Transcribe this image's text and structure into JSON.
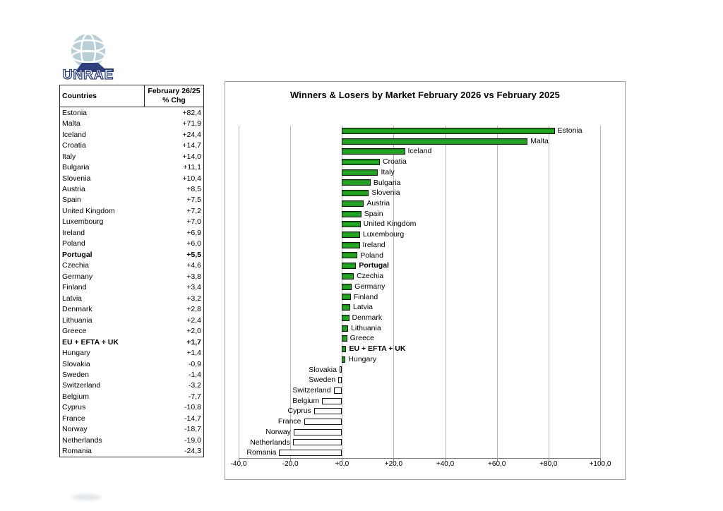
{
  "logo": {
    "brand": "UNRAE"
  },
  "table": {
    "header": {
      "countries": "Countries",
      "period": "February 26/25",
      "metric": "% Chg"
    },
    "rows": [
      {
        "country": "Estonia",
        "chg": "+82,4",
        "bold": false
      },
      {
        "country": "Malta",
        "chg": "+71,9",
        "bold": false
      },
      {
        "country": "Iceland",
        "chg": "+24,4",
        "bold": false
      },
      {
        "country": "Croatia",
        "chg": "+14,7",
        "bold": false
      },
      {
        "country": "Italy",
        "chg": "+14,0",
        "bold": false
      },
      {
        "country": "Bulgaria",
        "chg": "+11,1",
        "bold": false
      },
      {
        "country": "Slovenia",
        "chg": "+10,4",
        "bold": false
      },
      {
        "country": "Austria",
        "chg": "+8,5",
        "bold": false
      },
      {
        "country": "Spain",
        "chg": "+7,5",
        "bold": false
      },
      {
        "country": "United Kingdom",
        "chg": "+7,2",
        "bold": false
      },
      {
        "country": "Luxembourg",
        "chg": "+7,0",
        "bold": false
      },
      {
        "country": "Ireland",
        "chg": "+6,9",
        "bold": false
      },
      {
        "country": "Poland",
        "chg": "+6,0",
        "bold": false
      },
      {
        "country": "Portugal",
        "chg": "+5,5",
        "bold": true
      },
      {
        "country": "Czechia",
        "chg": "+4,6",
        "bold": false
      },
      {
        "country": "Germany",
        "chg": "+3,8",
        "bold": false
      },
      {
        "country": "Finland",
        "chg": "+3,4",
        "bold": false
      },
      {
        "country": "Latvia",
        "chg": "+3,2",
        "bold": false
      },
      {
        "country": "Denmark",
        "chg": "+2,8",
        "bold": false
      },
      {
        "country": "Lithuania",
        "chg": "+2,4",
        "bold": false
      },
      {
        "country": "Greece",
        "chg": "+2,0",
        "bold": false
      },
      {
        "country": "EU + EFTA + UK",
        "chg": "+1,7",
        "bold": true
      },
      {
        "country": "Hungary",
        "chg": "+1,4",
        "bold": false
      },
      {
        "country": "Slovakia",
        "chg": "-0,9",
        "bold": false
      },
      {
        "country": "Sweden",
        "chg": "-1,4",
        "bold": false
      },
      {
        "country": "Switzerland",
        "chg": "-3,2",
        "bold": false
      },
      {
        "country": "Belgium",
        "chg": "-7,7",
        "bold": false
      },
      {
        "country": "Cyprus",
        "chg": "-10,8",
        "bold": false
      },
      {
        "country": "France",
        "chg": "-14,7",
        "bold": false
      },
      {
        "country": "Norway",
        "chg": "-18,7",
        "bold": false
      },
      {
        "country": "Netherlands",
        "chg": "-19,0",
        "bold": false
      },
      {
        "country": "Romania",
        "chg": "-24,3",
        "bold": false
      }
    ]
  },
  "chart_data": {
    "type": "bar",
    "orientation": "horizontal",
    "title": "Winners & Losers by Market February 2026 vs February 2025",
    "categories": [
      "Estonia",
      "Malta",
      "Iceland",
      "Croatia",
      "Italy",
      "Bulgaria",
      "Slovenia",
      "Austria",
      "Spain",
      "United Kingdom",
      "Luxembourg",
      "Ireland",
      "Poland",
      "Portugal",
      "Czechia",
      "Germany",
      "Finland",
      "Latvia",
      "Denmark",
      "Lithuania",
      "Greece",
      "EU + EFTA + UK",
      "Hungary",
      "Slovakia",
      "Sweden",
      "Switzerland",
      "Belgium",
      "Cyprus",
      "France",
      "Norway",
      "Netherlands",
      "Romania"
    ],
    "values": [
      82.4,
      71.9,
      24.4,
      14.7,
      14.0,
      11.1,
      10.4,
      8.5,
      7.5,
      7.2,
      7.0,
      6.9,
      6.0,
      5.5,
      4.6,
      3.8,
      3.4,
      3.2,
      2.8,
      2.4,
      2.0,
      1.7,
      1.4,
      -0.9,
      -1.4,
      -3.2,
      -7.7,
      -10.8,
      -14.7,
      -18.7,
      -19.0,
      -24.3
    ],
    "bold_categories": [
      "Portugal",
      "EU + EFTA + UK"
    ],
    "xlim": [
      -40,
      100
    ],
    "xtick_values": [
      -40,
      -20,
      0,
      20,
      40,
      60,
      80,
      100
    ],
    "xtick_labels": [
      "-40,0",
      "-20,0",
      "+0,0",
      "+20,0",
      "+40,0",
      "+60,0",
      "+80,0",
      "+100,0"
    ],
    "grid": true,
    "legend": "none",
    "label_position": "outside-end",
    "positive_color": "#1e9e1e",
    "negative_color": "#ffffff",
    "bar_border_color": "#141414"
  }
}
